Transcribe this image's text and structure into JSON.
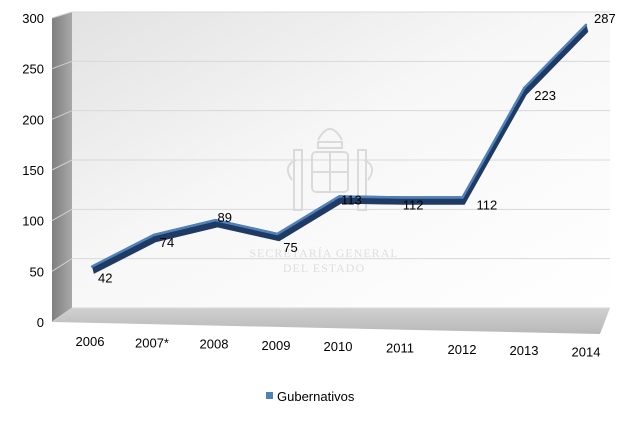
{
  "chart_data": {
    "type": "line",
    "title": "",
    "xlabel": "",
    "ylabel": "",
    "categories": [
      "2006",
      "2007*",
      "2008",
      "2009",
      "2010",
      "2011",
      "2012",
      "2013",
      "2014"
    ],
    "series": [
      {
        "name": "Gubernativos",
        "values": [
          42,
          74,
          89,
          75,
          113,
          112,
          112,
          223,
          287
        ],
        "color": "#4f81bd"
      }
    ],
    "ylim": [
      0,
      300
    ],
    "yticks": [
      0,
      50,
      100,
      150,
      200,
      250,
      300
    ],
    "grid": true,
    "legend": "bottom",
    "style": "3d"
  },
  "watermark": {
    "line1": "SECRETARÍA GENERAL",
    "line2": "DEL ESTADO"
  }
}
